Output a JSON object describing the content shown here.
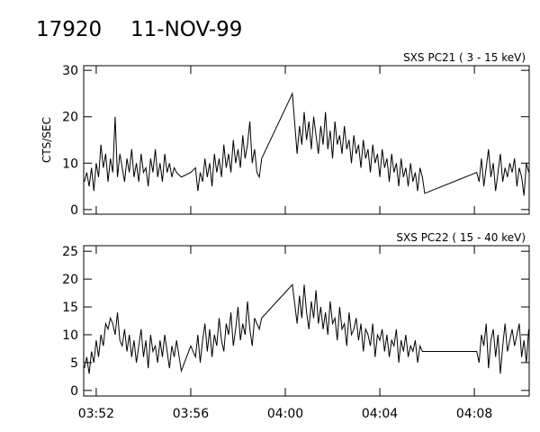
{
  "header": {
    "id": "17920",
    "date": "11-NOV-99"
  },
  "chart_data": [
    {
      "type": "line",
      "title": "SXS PC21  (  3 - 15 keV)",
      "ylabel": "CTS/SEC",
      "color": "#000000",
      "xlim": [
        231.47,
        250.32
      ],
      "xticks": [
        {
          "value": 232,
          "label": "03:52"
        },
        {
          "value": 236,
          "label": "03:56"
        },
        {
          "value": 240,
          "label": "04:00"
        },
        {
          "value": 244,
          "label": "04:04"
        },
        {
          "value": 248,
          "label": "04:08"
        }
      ],
      "ylim": [
        -1,
        31
      ],
      "yticks": [
        0,
        10,
        20,
        30
      ],
      "x": [
        231.5,
        231.6,
        231.7,
        231.8,
        231.9,
        232.0,
        232.1,
        232.2,
        232.3,
        232.4,
        232.5,
        232.6,
        232.7,
        232.8,
        232.9,
        233.0,
        233.1,
        233.2,
        233.3,
        233.4,
        233.5,
        233.6,
        233.7,
        233.8,
        233.9,
        234.0,
        234.1,
        234.2,
        234.3,
        234.4,
        234.5,
        234.6,
        234.7,
        234.8,
        234.9,
        235.0,
        235.1,
        235.2,
        235.3,
        235.4,
        235.6,
        236.0,
        236.2,
        236.3,
        236.4,
        236.5,
        236.6,
        236.7,
        236.8,
        236.9,
        237.0,
        237.1,
        237.2,
        237.3,
        237.4,
        237.5,
        237.6,
        237.7,
        237.8,
        237.9,
        238.0,
        238.1,
        238.2,
        238.3,
        238.4,
        238.5,
        238.6,
        238.7,
        238.8,
        238.9,
        239.0,
        240.3,
        240.5,
        240.6,
        240.7,
        240.8,
        240.9,
        241.0,
        241.1,
        241.2,
        241.3,
        241.4,
        241.5,
        241.6,
        241.7,
        241.8,
        241.9,
        242.0,
        242.1,
        242.2,
        242.3,
        242.4,
        242.5,
        242.6,
        242.7,
        242.8,
        242.9,
        243.0,
        243.1,
        243.2,
        243.3,
        243.4,
        243.5,
        243.6,
        243.7,
        243.8,
        243.9,
        244.0,
        244.1,
        244.2,
        244.3,
        244.4,
        244.5,
        244.6,
        244.7,
        244.8,
        244.9,
        245.0,
        245.1,
        245.2,
        245.3,
        245.4,
        245.5,
        245.6,
        245.7,
        245.8,
        245.9,
        248.1,
        248.2,
        248.3,
        248.4,
        248.5,
        248.6,
        248.7,
        248.8,
        248.9,
        249.0,
        249.1,
        249.2,
        249.3,
        249.4,
        249.5,
        249.6,
        249.7,
        249.8,
        249.9,
        250.0,
        250.1,
        250.2,
        250.3
      ],
      "values": [
        6,
        8,
        5,
        9,
        4,
        10,
        7,
        14,
        9,
        12,
        6,
        11,
        8,
        20,
        7,
        12,
        9,
        6,
        11,
        8,
        13,
        7,
        10,
        6,
        12,
        8,
        9,
        5,
        11,
        8,
        13,
        7,
        10,
        6,
        12,
        8,
        10,
        7,
        9,
        8,
        7,
        8,
        9,
        4,
        8,
        6,
        11,
        7,
        10,
        5,
        12,
        8,
        11,
        7,
        14,
        9,
        12,
        8,
        15,
        10,
        13,
        9,
        16,
        11,
        14,
        19,
        10,
        13,
        8,
        7,
        11,
        25,
        12,
        18,
        14,
        21,
        15,
        19,
        13,
        20,
        16,
        12,
        18,
        14,
        21,
        13,
        17,
        11,
        19,
        14,
        16,
        12,
        18,
        13,
        15,
        10,
        16,
        12,
        14,
        9,
        15,
        11,
        13,
        8,
        14,
        10,
        12,
        7,
        13,
        9,
        11,
        6,
        12,
        8,
        10,
        5,
        11,
        7,
        9,
        5,
        10,
        6,
        8,
        4,
        9,
        7,
        3.5,
        8,
        6,
        11,
        5,
        9,
        13,
        7,
        10,
        4,
        8,
        12,
        6,
        9,
        7,
        10,
        8,
        11,
        5,
        9,
        7,
        3,
        10,
        8
      ]
    },
    {
      "type": "line",
      "title": "SXS PC22  ( 15 - 40 keV)",
      "color": "#000000",
      "xlim": [
        231.47,
        250.32
      ],
      "xticks": [
        {
          "value": 232,
          "label": "03:52"
        },
        {
          "value": 236,
          "label": "03:56"
        },
        {
          "value": 240,
          "label": "04:00"
        },
        {
          "value": 244,
          "label": "04:04"
        },
        {
          "value": 248,
          "label": "04:08"
        }
      ],
      "ylim": [
        -1,
        26
      ],
      "yticks": [
        0,
        5,
        10,
        15,
        20,
        25
      ],
      "x": [
        231.5,
        231.6,
        231.7,
        231.8,
        231.9,
        232.0,
        232.1,
        232.2,
        232.3,
        232.4,
        232.5,
        232.6,
        232.7,
        232.8,
        232.9,
        233.0,
        233.1,
        233.2,
        233.3,
        233.4,
        233.5,
        233.6,
        233.7,
        233.8,
        233.9,
        234.0,
        234.1,
        234.2,
        234.3,
        234.4,
        234.5,
        234.6,
        234.7,
        234.8,
        234.9,
        235.0,
        235.1,
        235.2,
        235.3,
        235.4,
        235.6,
        236.0,
        236.2,
        236.3,
        236.4,
        236.5,
        236.6,
        236.7,
        236.8,
        236.9,
        237.0,
        237.1,
        237.2,
        237.3,
        237.4,
        237.5,
        237.6,
        237.7,
        237.8,
        237.9,
        238.0,
        238.1,
        238.2,
        238.3,
        238.4,
        238.5,
        238.6,
        238.7,
        238.8,
        238.9,
        239.0,
        240.3,
        240.5,
        240.6,
        240.7,
        240.8,
        240.9,
        241.0,
        241.1,
        241.2,
        241.3,
        241.4,
        241.5,
        241.6,
        241.7,
        241.8,
        241.9,
        242.0,
        242.1,
        242.2,
        242.3,
        242.4,
        242.5,
        242.6,
        242.7,
        242.8,
        242.9,
        243.0,
        243.1,
        243.2,
        243.3,
        243.4,
        243.5,
        243.6,
        243.7,
        243.8,
        243.9,
        244.0,
        244.1,
        244.2,
        244.3,
        244.4,
        244.5,
        244.6,
        244.7,
        244.8,
        244.9,
        245.0,
        245.1,
        245.2,
        245.3,
        245.4,
        245.5,
        245.6,
        245.7,
        245.8,
        245.9,
        248.1,
        248.2,
        248.3,
        248.4,
        248.5,
        248.6,
        248.7,
        248.8,
        248.9,
        249.0,
        249.1,
        249.2,
        249.3,
        249.4,
        249.5,
        249.6,
        249.7,
        249.8,
        249.9,
        250.0,
        250.1,
        250.2,
        250.3
      ],
      "values": [
        4,
        6,
        3,
        7,
        5,
        9,
        6,
        10,
        8,
        12,
        11,
        13,
        12,
        10,
        14,
        9,
        8,
        11,
        7,
        10,
        6,
        9,
        5,
        8,
        11,
        6,
        9,
        4,
        10,
        7,
        8,
        5,
        9,
        6,
        10,
        7,
        4,
        8,
        6,
        9,
        3.5,
        8,
        6,
        10,
        5,
        9,
        12,
        7,
        11,
        6,
        10,
        8,
        13,
        9,
        7,
        12,
        10,
        14,
        8,
        11,
        15,
        9,
        12,
        10,
        16,
        11,
        8,
        13,
        12,
        11,
        13,
        19,
        12,
        17,
        13,
        19,
        14,
        11,
        16,
        13,
        18,
        12,
        15,
        11,
        14,
        10,
        16,
        12,
        13,
        9,
        15,
        11,
        12,
        8,
        14,
        10,
        11,
        13,
        9,
        12,
        7,
        11,
        10,
        8,
        12,
        6,
        10,
        9,
        11,
        7,
        10,
        6,
        9,
        8,
        11,
        5,
        9,
        7,
        10,
        6,
        8,
        7,
        9,
        5,
        8,
        7,
        7,
        7,
        5,
        10,
        8,
        12,
        4,
        9,
        11,
        6,
        10,
        3,
        8,
        12,
        7,
        9,
        11,
        8,
        10,
        12,
        6,
        9,
        5,
        11
      ]
    }
  ]
}
